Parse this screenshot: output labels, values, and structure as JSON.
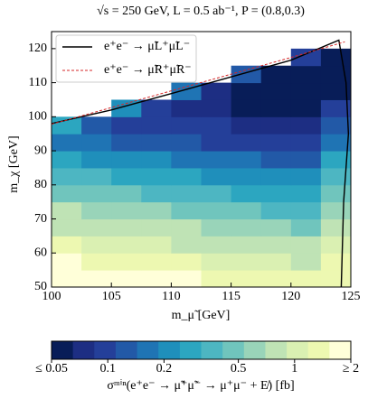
{
  "chart_data": {
    "type": "contour",
    "title": "√s = 250 GeV, L = 0.5 ab⁻¹, P = (0.8,0.3)",
    "x_label": "m_μ̃ [GeV]",
    "y_label": "m_χ [GeV]",
    "xlim": [
      100,
      125
    ],
    "ylim": [
      50,
      125
    ],
    "xticks": [
      100,
      105,
      110,
      115,
      120,
      125
    ],
    "yticks": [
      50,
      60,
      70,
      80,
      90,
      100,
      110,
      120
    ],
    "x": [
      101.25,
      103.75,
      106.25,
      108.75,
      111.25,
      113.75,
      116.25,
      118.75,
      121.25,
      123.75
    ],
    "y": [
      52.5,
      57.5,
      62.5,
      67.5,
      72.5,
      77.5,
      82.5,
      87.5,
      92.5,
      97.5,
      102.5,
      107.5,
      112.5,
      117.5
    ],
    "z": [
      [
        2,
        2,
        1.8,
        1.8,
        1.6,
        1.5,
        1.4,
        1.3,
        1.3,
        1.5
      ],
      [
        1.6,
        1.5,
        1.4,
        1.3,
        1.2,
        1.1,
        1.0,
        1.0,
        0.9,
        1.2
      ],
      [
        1.2,
        1.1,
        1.0,
        0.95,
        0.9,
        0.85,
        0.8,
        0.75,
        0.7,
        1.0
      ],
      [
        0.9,
        0.85,
        0.8,
        0.75,
        0.7,
        0.65,
        0.6,
        0.55,
        0.5,
        0.8
      ],
      [
        0.7,
        0.65,
        0.6,
        0.55,
        0.5,
        0.45,
        0.42,
        0.4,
        0.38,
        0.6
      ],
      [
        0.5,
        0.45,
        0.42,
        0.4,
        0.36,
        0.33,
        0.3,
        0.28,
        0.27,
        0.45
      ],
      [
        0.35,
        0.32,
        0.3,
        0.28,
        0.25,
        0.23,
        0.21,
        0.2,
        0.19,
        0.35
      ],
      [
        0.25,
        0.22,
        0.2,
        0.19,
        0.17,
        0.16,
        0.15,
        0.14,
        0.13,
        0.25
      ],
      [
        0.18,
        0.15,
        0.14,
        0.13,
        0.12,
        0.11,
        0.1,
        0.1,
        0.09,
        0.18
      ],
      [
        0.3,
        0.12,
        0.11,
        0.1,
        0.09,
        0.085,
        0.08,
        0.075,
        0.07,
        0.12
      ],
      [
        null,
        null,
        0.2,
        0.09,
        0.08,
        0.07,
        0.065,
        0.06,
        0.055,
        0.09
      ],
      [
        null,
        null,
        null,
        null,
        0.15,
        0.07,
        0.06,
        0.055,
        0.05,
        0.06
      ],
      [
        null,
        null,
        null,
        null,
        null,
        null,
        0.12,
        0.055,
        0.045,
        0.045
      ],
      [
        null,
        null,
        null,
        null,
        null,
        null,
        null,
        null,
        0.1,
        0.04
      ]
    ],
    "colormap": [
      "#081d58",
      "#1d2e83",
      "#243f99",
      "#2259a7",
      "#1f74b4",
      "#1f8fbb",
      "#2ca6c0",
      "#4db6c2",
      "#70c5bd",
      "#99d4b9",
      "#bfe3b5",
      "#daf0b2",
      "#edf8b1",
      "#ffffd9"
    ],
    "clim": [
      0.05,
      2
    ],
    "clog": true,
    "cticks": [
      {
        "value": 0.05,
        "label": "≤ 0.05"
      },
      0.1,
      0.2,
      0.5,
      1,
      {
        "value": 2,
        "label": "≥ 2"
      }
    ],
    "colorbar_label": "σᵐⁱⁿ(e⁺e⁻ → μ̃⁺μ̃⁻ → μ⁺μ⁻ + E̸) [fb]",
    "legend": "upper left",
    "series": [
      {
        "name": "e⁺e⁻ → μ̃L⁺μ̃L⁻",
        "color": "#000000",
        "linestyle": "solid",
        "x": [
          100,
          105,
          110,
          115,
          120,
          124,
          124.6,
          124.8,
          124.4,
          124.2
        ],
        "values": [
          98,
          102,
          106.8,
          111.7,
          116.6,
          122.5,
          110,
          95,
          75,
          50
        ]
      },
      {
        "name": "e⁺e⁻ → μ̃R⁺μ̃R⁻",
        "color": "#d62728",
        "linestyle": "dashed",
        "x": [
          100,
          110,
          120,
          124.5
        ],
        "values": [
          97.8,
          107.6,
          117.4,
          122
        ]
      }
    ]
  }
}
